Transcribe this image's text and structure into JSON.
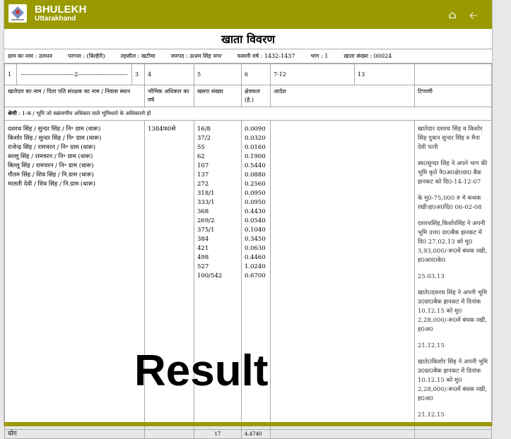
{
  "header": {
    "brand": "BHULEKH",
    "sub": "Uttarakhand",
    "home_icon": "home-icon",
    "back_icon": "arrow-left-icon",
    "color": "#9a9a00"
  },
  "title": "खाता विवरण",
  "info": [
    "ग्राम का नाम : उलधन",
    "परगना : (बिल्हैरी)",
    "तहसील : खटीमा",
    "जनपद : ऊधम सिंह नगर",
    "फसली वर्ष : 1432-1437",
    "भाग : 1",
    "खाता संख्या : 00024"
  ],
  "col_numbers": [
    "1",
    "----------------------------2--------------------------",
    "3",
    "4",
    "5",
    "6",
    "7-12",
    "13",
    ""
  ],
  "col_headers": [
    "खातेदार का नाम / पिता पति संरक्षक का नाम / निवास स्थान",
    "भौमिक अधिकार का वर्ष",
    "खसरा संख्या",
    "क्षेत्रफल (हे.)",
    "आदेश",
    "टिप्पणी"
  ],
  "category": {
    "label": "श्रेणी",
    "text": " : 1-क / भूमि जो सक्रंमणीय अधिकार वाले भूमिधारो के अधिकारमे हो"
  },
  "owners": [
    "दशरथ सिंह / सुन्दर सिंह / नि॰ ग्राम (थारू)",
    "किशोर सिंह / सुन्दर सिंह / नि॰ ग्राम (थारू)",
    "राजेन्द्र सिंह / रामचरन / नि॰ ग्राम (थारू)",
    "सल्लू सिंह / रामचरन / नि॰ ग्राम (थारू)",
    "बिल्लू सिंह / रामचरन / नि॰ ग्राम (थारू)",
    "गौतम सिंह / शिव सिंह / नि.ग्राम (थारू)",
    "मालती देवी / शिव सिंह / नि.ग्राम (थारू)"
  ],
  "year": "1384फ0से",
  "khasra": [
    "16/8",
    "37/2",
    "55",
    "62",
    "107",
    "137",
    "272",
    "318/1",
    "333/1",
    "368",
    "269/2",
    "375/1",
    "384",
    "421",
    "498",
    "527",
    "100/542"
  ],
  "area": [
    "0.0090",
    "0.0320",
    "0.0160",
    "0.1900",
    "0.5440",
    "0.0880",
    "0.2560",
    "0.0950",
    "0.0950",
    "0.4430",
    "0.0540",
    "0.1040",
    "0.3450",
    "0.0630",
    "0.4460",
    "1.0240",
    "0.6700"
  ],
  "notes": [
    "खातेदार दशरथ सिंह व किशोर सिंह पुत्रान सुन्दर सिंह व मैना देवी पत्नी",
    "स्व0सुन्दर सिंह ने अपने भाग की भूमि कृते नै0अ0क्षे0ग्रा0 बैंक झनकट को दि0-14-12-07",
    "के मु0-75,000 रु मे बन्धक रखी।ह0अ0दि0 06-02-08",
    "दशरथसिंह,किशोरसिंह ने अपनी भूमि उत्त0 ग्रा0बैंक झनकट में दि0 27.02.13 को मु0 3,93,000/-रू0में बंधक रखी, ह0आर0के0",
    "25.03.13",
    "खाते0दशरथ सिंह ने अपनी भूमि उ0ग्रा0बैक झनकट में दिनांक 10.12.15 को मु0 2,28,000/-रू0में बंधक रखी, ह0अ0",
    "21.12.15",
    "खाते0किशोर सिंह ने अपनी भूमि उ0ग्रा0बैक झनकट में दिनांक 10.12.15 को मु0 2,28,000/-रू0में बंधक रखी, ह0अ0",
    "21.12.15"
  ],
  "total": {
    "label": "योग",
    "khasra_count": "17",
    "area": "4.4740"
  },
  "overlay": "Result"
}
